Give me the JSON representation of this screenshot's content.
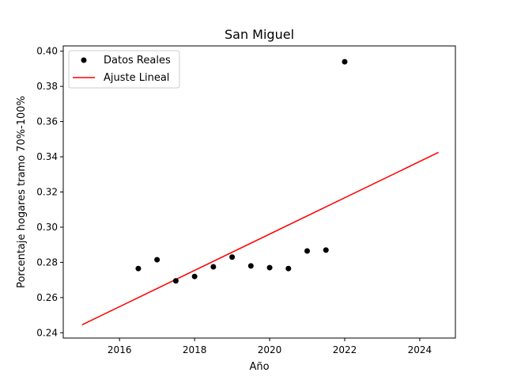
{
  "chart_data": {
    "type": "scatter",
    "title": "San Miguel",
    "xlabel": "Año",
    "ylabel": "Porcentaje hogares tramo 70%-100%",
    "xlim": [
      14.5,
      24.95
    ],
    "ylim": [
      0.237,
      0.403
    ],
    "xticks": [
      16,
      18,
      20,
      22,
      24
    ],
    "xtick_labels": [
      "2016",
      "2018",
      "2020",
      "2022",
      "2024"
    ],
    "yticks": [
      0.24,
      0.26,
      0.28,
      0.3,
      0.32,
      0.34,
      0.36,
      0.38,
      0.4
    ],
    "ytick_labels": [
      "0.24",
      "0.26",
      "0.28",
      "0.30",
      "0.32",
      "0.34",
      "0.36",
      "0.38",
      "0.40"
    ],
    "grid": false,
    "legend_position": "top-left",
    "series": [
      {
        "name": "Datos Reales",
        "type": "scatter",
        "color": "#000000",
        "x": [
          16.5,
          17.0,
          17.5,
          18.0,
          18.5,
          19.0,
          19.5,
          20.0,
          20.5,
          21.0,
          21.5,
          22.0
        ],
        "y": [
          0.2765,
          0.2815,
          0.2695,
          0.272,
          0.2775,
          0.283,
          0.278,
          0.277,
          0.2765,
          0.2865,
          0.287,
          0.394
        ]
      },
      {
        "name": "Ajuste Lineal",
        "type": "line",
        "color": "#ff0000",
        "x": [
          15.0,
          24.5
        ],
        "y": [
          0.2445,
          0.3425
        ]
      }
    ]
  }
}
